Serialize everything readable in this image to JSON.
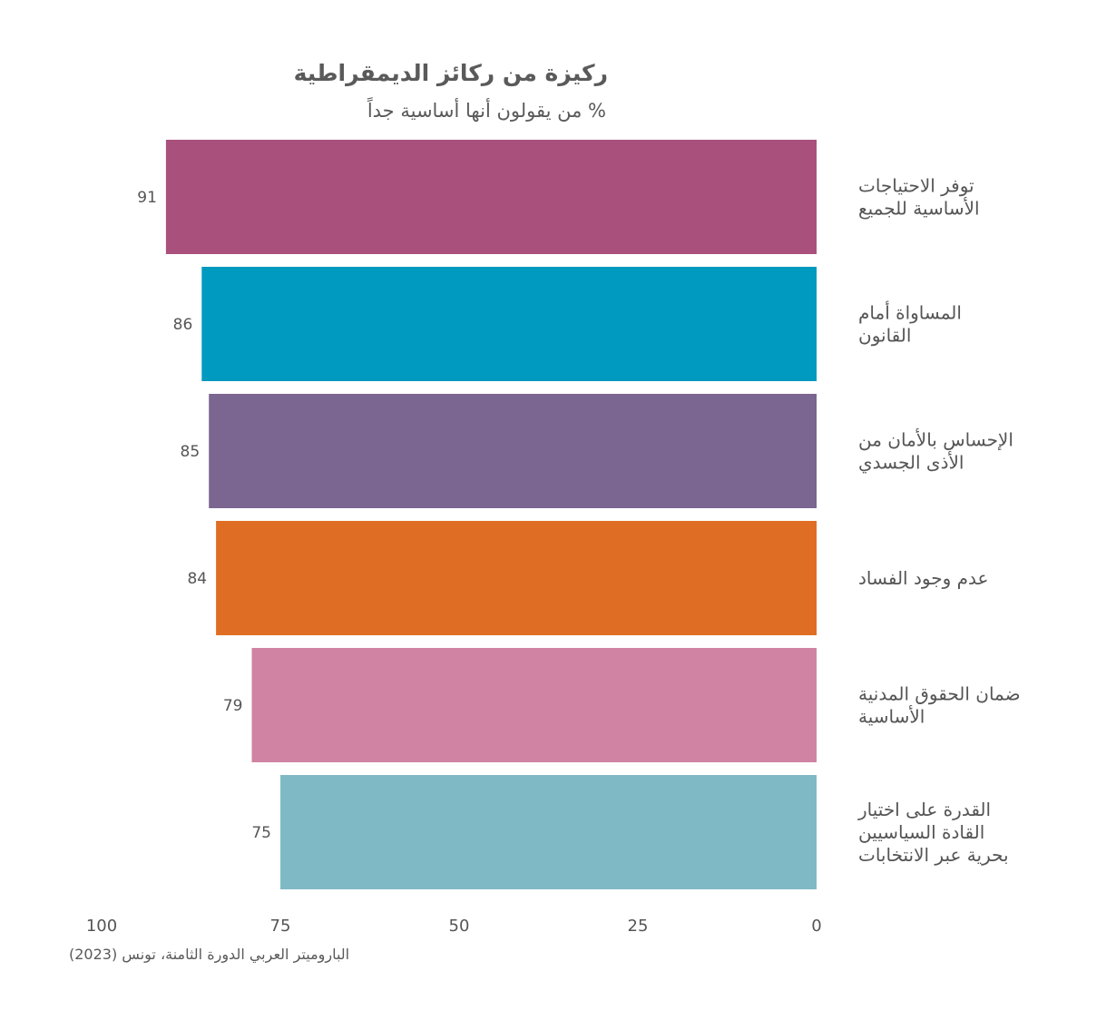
{
  "title": "ركيزة من ركائز الديمقراطية",
  "subtitle": "% من يقولون أنها أساسية جداً",
  "source": "الباروميتر العربي الدورة الثامنة، تونس (2023)",
  "chart_data": {
    "type": "bar",
    "orientation": "horizontal",
    "x_direction": "reversed",
    "categories": [
      [
        "توفر الاحتياجات",
        "الأساسية للجميع"
      ],
      [
        "المساواة أمام",
        "القانون"
      ],
      [
        "الإحساس بالأمان من",
        "الأذى الجسدي"
      ],
      [
        "عدم وجود الفساد"
      ],
      [
        "ضمان الحقوق المدنية",
        "الأساسية"
      ],
      [
        "القدرة على اختيار",
        "القادة السياسيين",
        "بحرية عبر الانتخابات"
      ]
    ],
    "values": [
      91,
      86,
      85,
      84,
      79,
      75
    ],
    "data_labels": [
      "91",
      "86",
      "85",
      "84",
      "79",
      "75"
    ],
    "colors": [
      "#aa507c",
      "#0099bf",
      "#7b6591",
      "#df6e24",
      "#d083a2",
      "#80b9c6"
    ],
    "xlim": [
      0,
      100
    ],
    "x_ticks": [
      {
        "value": 0,
        "label": "0"
      },
      {
        "value": 25,
        "label": "25"
      },
      {
        "value": 50,
        "label": "50"
      },
      {
        "value": 75,
        "label": "75"
      },
      {
        "value": 100,
        "label": "100"
      }
    ],
    "grid": false,
    "legend": "none"
  }
}
